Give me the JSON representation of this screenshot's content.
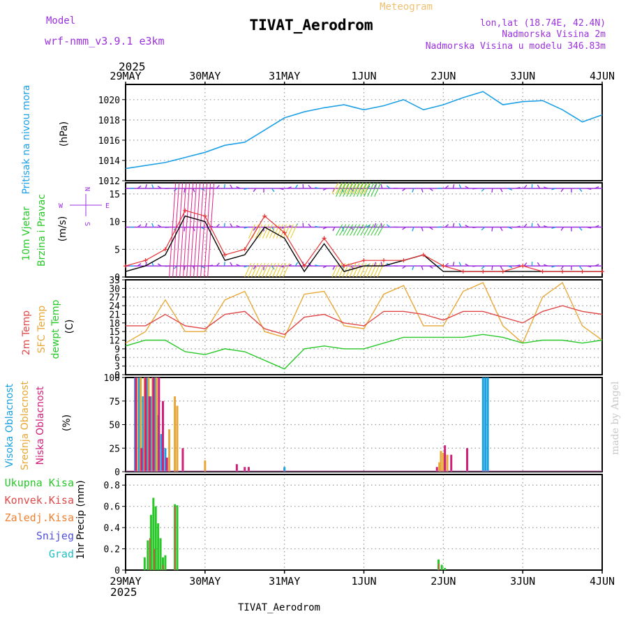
{
  "header": {
    "model_label": "Model",
    "model_name": "wrf-nmm_v3.9.1 e3km",
    "meteogram_label": "Meteogram",
    "station_title": "TIVAT_Aerodrom",
    "coords": "lon,lat (18.74E, 42.4N)",
    "height_2m": "Nadmorska Visina 2m",
    "model_height": "Nadmorska Visina u modelu 346.83m",
    "year_top": "2025"
  },
  "footer": {
    "year_bottom": "2025",
    "station_bottom": "TIVAT_Aerodrom",
    "credit": "made by Angel"
  },
  "colors": {
    "pressure": "#1ea0e6",
    "wind_speed_line": "#000000",
    "gust": "#e63232",
    "lev_low": "#9b30e0",
    "temp2m": "#e04848",
    "sfc": "#e8a838",
    "dewpt": "#28c828",
    "cloud_high": "#19a0e0",
    "cloud_mid": "#e8a838",
    "cloud_low": "#d0207a",
    "grid": "#999999"
  },
  "dates": [
    "29MAY",
    "30MAY",
    "31MAY",
    "1JUN",
    "2JUN",
    "3JUN",
    "4JUN"
  ],
  "chart_data": [
    {
      "type": "line",
      "panel": "pressure",
      "ylabel_1": "Pritisak na nivou mora",
      "ylabel_2": "(hPa)",
      "ylim": [
        1012,
        1021.5
      ],
      "yticks": [
        "1012",
        "1014",
        "1016",
        "1018",
        "1020"
      ],
      "x_days": [
        0,
        0.25,
        0.5,
        0.75,
        1,
        1.25,
        1.5,
        1.75,
        2,
        2.25,
        2.5,
        2.75,
        3,
        3.25,
        3.5,
        3.75,
        4,
        4.25,
        4.5,
        4.75,
        5,
        5.25,
        5.5,
        5.75,
        6
      ],
      "values": [
        1013.2,
        1013.5,
        1013.8,
        1014.3,
        1014.8,
        1015.5,
        1015.8,
        1017.0,
        1018.2,
        1018.8,
        1019.2,
        1019.5,
        1019.0,
        1019.4,
        1020.0,
        1019.0,
        1019.5,
        1020.2,
        1020.8,
        1019.5,
        1019.8,
        1019.9,
        1019.0,
        1017.8,
        1018.5
      ]
    },
    {
      "type": "line",
      "panel": "wind",
      "ylabel_1": "10m Vjetar",
      "ylabel_2": "Brzina i Pravac",
      "ylabel_3": "(m/s)",
      "compass_top": "N",
      "compass_w": "W",
      "compass_e": "E",
      "compass_s": "S",
      "ylim": [
        0,
        17
      ],
      "yticks": [
        "0",
        "5",
        "10",
        "15"
      ],
      "levels_labeled": [
        2,
        9,
        16
      ],
      "x_days": [
        0,
        0.25,
        0.5,
        0.75,
        1,
        1.25,
        1.5,
        1.75,
        2,
        2.25,
        2.5,
        2.75,
        3,
        3.25,
        3.5,
        3.75,
        4,
        4.25,
        4.5,
        4.75,
        5,
        5.25,
        5.5,
        5.75,
        6
      ],
      "series": [
        {
          "name": "wind speed",
          "values": [
            1,
            2,
            4,
            11,
            10,
            3,
            4,
            9,
            7,
            1,
            6,
            1,
            2,
            2,
            3,
            4,
            1,
            1,
            1,
            1,
            1,
            1,
            1,
            1,
            1
          ]
        },
        {
          "name": "gust",
          "values": [
            2,
            3,
            5,
            12,
            11,
            4,
            5,
            11,
            8,
            2,
            7,
            2,
            3,
            3,
            3,
            4,
            2,
            1,
            1,
            1,
            2,
            1,
            1,
            1,
            1
          ]
        }
      ]
    },
    {
      "type": "line",
      "panel": "temperature",
      "ylabel_1": "2m Temp",
      "ylabel_2": "SFC Temp",
      "ylabel_3": "dewpt Temp",
      "ylabel_4": "(C)",
      "ylim": [
        0,
        33
      ],
      "yticks": [
        "0",
        "3",
        "6",
        "9",
        "12",
        "15",
        "18",
        "21",
        "24",
        "27",
        "30",
        "33"
      ],
      "x_days": [
        0,
        0.25,
        0.5,
        0.75,
        1,
        1.25,
        1.5,
        1.75,
        2,
        2.25,
        2.5,
        2.75,
        3,
        3.25,
        3.5,
        3.75,
        4,
        4.25,
        4.5,
        4.75,
        5,
        5.25,
        5.5,
        5.75,
        6
      ],
      "series": [
        {
          "name": "2m Temp",
          "values": [
            17,
            17,
            21,
            17,
            16,
            21,
            22,
            16,
            14,
            20,
            21,
            18,
            17,
            22,
            22,
            21,
            19,
            22,
            22,
            20,
            18,
            22,
            24,
            22,
            21
          ]
        },
        {
          "name": "SFC Temp",
          "values": [
            11,
            15,
            26,
            15,
            15,
            26,
            29,
            15,
            13,
            28,
            29,
            17,
            16,
            28,
            31,
            17,
            17,
            29,
            32,
            17,
            11,
            27,
            32,
            17,
            12
          ]
        },
        {
          "name": "dewpt Temp",
          "values": [
            10,
            12,
            12,
            8,
            7,
            9,
            8,
            5,
            2,
            9,
            10,
            9,
            9,
            11,
            13,
            13,
            13,
            13,
            14,
            13,
            11,
            12,
            12,
            11,
            12
          ]
        }
      ]
    },
    {
      "type": "bar",
      "panel": "clouds",
      "ylabel_1": "Visoka Oblacnost",
      "ylabel_2": "Srednja Oblacnost",
      "ylabel_3": "Niska Oblacnost",
      "ylabel_4": "(%)",
      "ylim": [
        0,
        100
      ],
      "yticks": [
        "0",
        "25",
        "50",
        "75",
        "100"
      ],
      "series": [
        {
          "name": "Visoka Oblacnost",
          "x_days": [
            0.12,
            0.17,
            0.22,
            0.27,
            0.32,
            0.37,
            0.4,
            0.45,
            0.5,
            2.0,
            4.5,
            4.53,
            4.56
          ],
          "values": [
            100,
            100,
            80,
            100,
            80,
            100,
            60,
            40,
            25,
            5,
            100,
            100,
            100
          ]
        },
        {
          "name": "Srednja Oblacnost",
          "x_days": [
            0.14,
            0.19,
            0.24,
            0.29,
            0.34,
            0.39,
            0.55,
            0.62,
            0.65,
            1.0,
            3.95,
            3.97,
            4.0,
            4.05
          ],
          "values": [
            100,
            100,
            100,
            100,
            100,
            100,
            45,
            80,
            70,
            12,
            10,
            22,
            20,
            18
          ]
        },
        {
          "name": "Niska Oblacnost",
          "x_days": [
            0.13,
            0.2,
            0.25,
            0.3,
            0.35,
            0.42,
            0.47,
            0.52,
            0.72,
            1.4,
            1.5,
            1.55,
            3.92,
            4.02,
            4.1,
            4.3
          ],
          "values": [
            100,
            25,
            100,
            80,
            100,
            100,
            75,
            15,
            25,
            8,
            5,
            5,
            5,
            28,
            18,
            25
          ]
        }
      ]
    },
    {
      "type": "bar",
      "panel": "precip",
      "ylabel_1": "Ukupna Kisa",
      "ylabel_2": "Konvek.Kisa",
      "ylabel_3": "Zaledj.Kisa",
      "ylabel_4": "Snijeg",
      "ylabel_5": "Grad",
      "ylabel_6": "1hr Precip (mm)",
      "ylim": [
        0,
        0.9
      ],
      "yticks": [
        "0",
        "0.2",
        "0.4",
        "0.6",
        "0.8"
      ],
      "series": [
        {
          "name": "Ukupna Kisa",
          "x_days": [
            0.24,
            0.28,
            0.32,
            0.35,
            0.38,
            0.41,
            0.44,
            0.47,
            0.5,
            0.62,
            0.65,
            3.94,
            3.98,
            4.02
          ],
          "values": [
            0.12,
            0.28,
            0.52,
            0.68,
            0.6,
            0.44,
            0.3,
            0.12,
            0.14,
            0.62,
            0.61,
            0.1,
            0.05,
            0.02
          ]
        },
        {
          "name": "Konvek.Kisa",
          "x_days": [
            0.31,
            0.37,
            0.48,
            0.63,
            3.95
          ],
          "values": [
            0.3,
            0.2,
            0.05,
            0.6,
            0.06
          ]
        },
        {
          "name": "Zaledj.Kisa",
          "x_days": [],
          "values": []
        },
        {
          "name": "Snijeg",
          "x_days": [],
          "values": []
        },
        {
          "name": "Grad",
          "x_days": [],
          "values": []
        }
      ]
    }
  ]
}
